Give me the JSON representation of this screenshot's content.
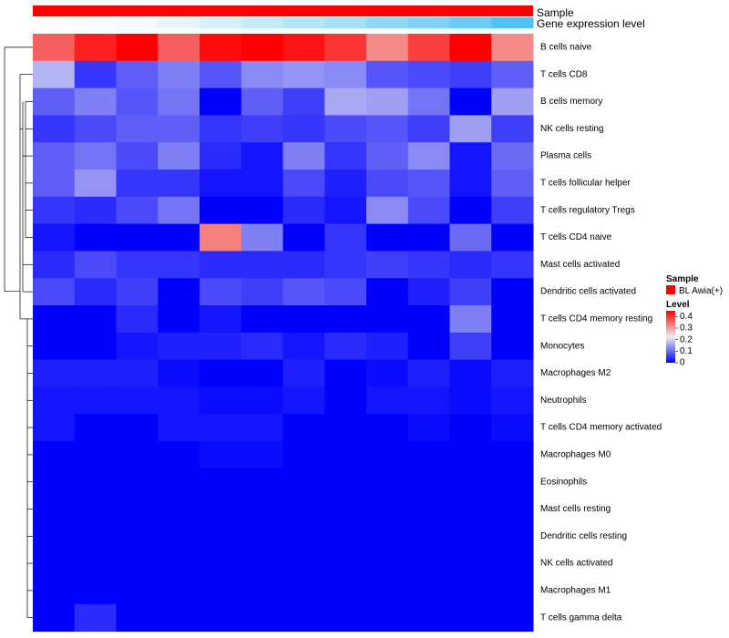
{
  "chart_data": {
    "type": "heatmap",
    "title": "",
    "rows": [
      "B cells naive",
      "T cells CD8",
      "B cells memory",
      "NK cells resting",
      "Plasma cells",
      "T cells follicular helper",
      "T cells regulatory  Tregs",
      "T cells CD4 naive",
      "Mast cells activated",
      "Dendritic cells activated",
      "T cells CD4 memory resting",
      "Monocytes",
      "Macrophages M2",
      "Neutrophils",
      "T cells CD4 memory activated",
      "Macrophages M0",
      "Eosinophils",
      "Mast cells resting",
      "Dendritic cells resting",
      "NK cells activated",
      "Macrophages M1",
      "T cells gamma delta"
    ],
    "n_samples": 12,
    "values": [
      [
        0.36,
        0.42,
        0.45,
        0.36,
        0.44,
        0.45,
        0.43,
        0.4,
        0.32,
        0.39,
        0.45,
        0.32
      ],
      [
        0.17,
        0.05,
        0.09,
        0.12,
        0.08,
        0.13,
        0.14,
        0.13,
        0.08,
        0.07,
        0.06,
        0.09
      ],
      [
        0.09,
        0.12,
        0.08,
        0.11,
        0.0,
        0.09,
        0.06,
        0.16,
        0.15,
        0.11,
        0.0,
        0.15
      ],
      [
        0.05,
        0.07,
        0.09,
        0.09,
        0.05,
        0.06,
        0.05,
        0.07,
        0.08,
        0.06,
        0.15,
        0.06
      ],
      [
        0.09,
        0.11,
        0.07,
        0.12,
        0.04,
        0.02,
        0.12,
        0.05,
        0.09,
        0.13,
        0.02,
        0.1
      ],
      [
        0.09,
        0.14,
        0.05,
        0.05,
        0.02,
        0.02,
        0.07,
        0.03,
        0.07,
        0.08,
        0.02,
        0.09
      ],
      [
        0.05,
        0.04,
        0.07,
        0.11,
        0.0,
        0.0,
        0.04,
        0.02,
        0.13,
        0.07,
        0.0,
        0.06
      ],
      [
        0.02,
        0.0,
        0.0,
        0.0,
        0.33,
        0.12,
        0.0,
        0.05,
        0.0,
        0.0,
        0.1,
        0.0
      ],
      [
        0.04,
        0.07,
        0.05,
        0.05,
        0.04,
        0.04,
        0.04,
        0.05,
        0.06,
        0.05,
        0.04,
        0.05
      ],
      [
        0.07,
        0.04,
        0.06,
        0.0,
        0.07,
        0.06,
        0.08,
        0.07,
        0.0,
        0.03,
        0.06,
        0.0
      ],
      [
        0.0,
        0.0,
        0.04,
        0.0,
        0.02,
        0.0,
        0.0,
        0.0,
        0.0,
        0.0,
        0.12,
        0.0
      ],
      [
        0.0,
        0.0,
        0.02,
        0.03,
        0.03,
        0.04,
        0.02,
        0.04,
        0.03,
        0.0,
        0.06,
        0.0
      ],
      [
        0.03,
        0.03,
        0.03,
        0.01,
        0.0,
        0.0,
        0.03,
        0.0,
        0.01,
        0.03,
        0.01,
        0.03
      ],
      [
        0.02,
        0.02,
        0.02,
        0.02,
        0.01,
        0.01,
        0.02,
        0.0,
        0.02,
        0.02,
        0.01,
        0.02
      ],
      [
        0.02,
        0.0,
        0.0,
        0.02,
        0.02,
        0.02,
        0.0,
        0.0,
        0.0,
        0.01,
        0.0,
        0.01
      ],
      [
        0.0,
        0.0,
        0.0,
        0.0,
        0.01,
        0.01,
        0.0,
        0.0,
        0.0,
        0.0,
        0.0,
        0.0
      ],
      [
        0.0,
        0.0,
        0.0,
        0.0,
        0.0,
        0.0,
        0.0,
        0.0,
        0.0,
        0.0,
        0.0,
        0.0
      ],
      [
        0.0,
        0.0,
        0.0,
        0.0,
        0.0,
        0.0,
        0.0,
        0.0,
        0.0,
        0.0,
        0.0,
        0.0
      ],
      [
        0.0,
        0.0,
        0.0,
        0.0,
        0.0,
        0.0,
        0.0,
        0.0,
        0.0,
        0.0,
        0.0,
        0.0
      ],
      [
        0.0,
        0.0,
        0.0,
        0.0,
        0.0,
        0.0,
        0.0,
        0.0,
        0.0,
        0.0,
        0.0,
        0.0
      ],
      [
        0.0,
        0.0,
        0.0,
        0.0,
        0.0,
        0.0,
        0.0,
        0.0,
        0.0,
        0.0,
        0.0,
        0.0
      ],
      [
        0.0,
        0.04,
        0.0,
        0.0,
        0.0,
        0.0,
        0.0,
        0.0,
        0.0,
        0.0,
        0.0,
        0.0
      ]
    ],
    "color_scale": {
      "min": 0,
      "max": 0.45,
      "stops": [
        {
          "value": 0,
          "color": "#0000ff"
        },
        {
          "value": 0.225,
          "color": "#eeeeee"
        },
        {
          "value": 0.45,
          "color": "#ff0000"
        }
      ]
    },
    "annotations": {
      "sample_track": {
        "label": "Sample",
        "value": "BL Awia(+)",
        "color": "#ff0000"
      },
      "expression_track": {
        "label": "Gene expression level",
        "values": [
          0.0,
          0.01,
          0.03,
          0.06,
          0.1,
          0.14,
          0.18,
          0.22,
          0.27,
          0.31,
          0.36,
          0.42
        ],
        "color_low": "#ffffff",
        "color_high": "#4fc3f7"
      }
    },
    "legend": {
      "position": "right",
      "sample_title": "Sample",
      "sample_entry": "BL Awia(+)",
      "level_title": "Level",
      "level_ticks": [
        "0.4",
        "0.3",
        "0.2",
        "0.1",
        "0"
      ],
      "level_tick_values": [
        0.4,
        0.3,
        0.2,
        0.1,
        0
      ]
    },
    "row_dendrogram": true
  }
}
